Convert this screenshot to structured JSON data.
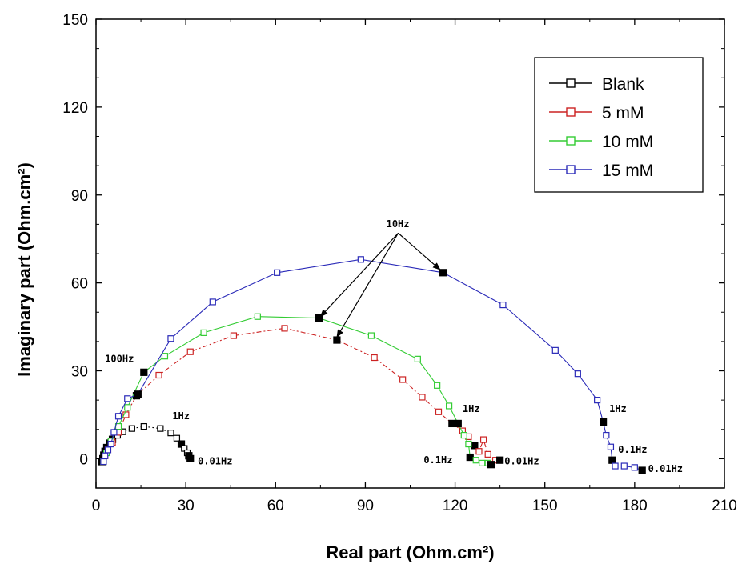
{
  "chart_data": {
    "type": "scatter",
    "xlabel": "Real part (Ohm.cm²)",
    "ylabel": "Imaginary part (Ohm.cm²)",
    "xlim": [
      0,
      210
    ],
    "ylim": [
      -10,
      150
    ],
    "xticks": [
      0,
      30,
      60,
      90,
      120,
      150,
      180,
      210
    ],
    "yticks": [
      0,
      30,
      60,
      90,
      120,
      150
    ],
    "grid": false,
    "legend_position": "top-right",
    "series": [
      {
        "name": "Blank",
        "color": "#000000",
        "line_style": "dotted",
        "points": [
          [
            2.0,
            -1.0
          ],
          [
            2.3,
            0.0
          ],
          [
            2.6,
            1.2
          ],
          [
            3.0,
            2.5
          ],
          [
            3.6,
            3.8
          ],
          [
            4.5,
            5.3
          ],
          [
            5.5,
            6.6
          ],
          [
            7.2,
            8.0
          ],
          [
            9.0,
            9.2
          ],
          [
            12.0,
            10.3
          ],
          [
            16.0,
            11.0
          ],
          [
            21.5,
            10.3
          ],
          [
            25.0,
            8.8
          ],
          [
            27.0,
            7.0
          ],
          [
            28.5,
            5.0
          ],
          [
            29.5,
            3.5
          ],
          [
            30.5,
            2.0
          ],
          [
            31.0,
            1.0
          ],
          [
            31.5,
            0.0
          ]
        ],
        "filled_indices": [
          0,
          1,
          2,
          3,
          4,
          5,
          6,
          14,
          17,
          18
        ]
      },
      {
        "name": "5 mM",
        "color": "#cc2222",
        "line_style": "dash-dot",
        "points": [
          [
            2.5,
            -1.0
          ],
          [
            3.0,
            1.0
          ],
          [
            4.0,
            3.0
          ],
          [
            5.5,
            5.5
          ],
          [
            7.5,
            9.0
          ],
          [
            10.0,
            15.0
          ],
          [
            13.5,
            21.5
          ],
          [
            21.0,
            28.5
          ],
          [
            31.5,
            36.5
          ],
          [
            46.0,
            42.0
          ],
          [
            63.0,
            44.5
          ],
          [
            80.5,
            40.5
          ],
          [
            93.0,
            34.5
          ],
          [
            102.5,
            27.0
          ],
          [
            109.0,
            21.0
          ],
          [
            114.5,
            16.0
          ],
          [
            119.0,
            12.0
          ],
          [
            122.5,
            9.5
          ],
          [
            124.5,
            7.5
          ],
          [
            126.5,
            4.5
          ],
          [
            128.0,
            2.5
          ],
          [
            129.5,
            6.5
          ],
          [
            131.0,
            1.5
          ],
          [
            133.5,
            -0.5
          ],
          [
            135.0,
            -0.5
          ]
        ],
        "filled_indices": [
          6,
          11,
          16,
          19,
          24
        ]
      },
      {
        "name": "10 mM",
        "color": "#33cc33",
        "line_style": "solid",
        "points": [
          [
            2.5,
            -1.0
          ],
          [
            3.5,
            2.0
          ],
          [
            5.0,
            6.0
          ],
          [
            7.5,
            11.0
          ],
          [
            10.5,
            17.5
          ],
          [
            16.0,
            29.5
          ],
          [
            23.0,
            35.0
          ],
          [
            36.0,
            43.0
          ],
          [
            54.0,
            48.5
          ],
          [
            74.5,
            48.0
          ],
          [
            92.0,
            42.0
          ],
          [
            107.5,
            34.0
          ],
          [
            114.0,
            25.0
          ],
          [
            118.0,
            18.0
          ],
          [
            121.0,
            12.0
          ],
          [
            123.0,
            8.0
          ],
          [
            124.5,
            5.0
          ],
          [
            125.0,
            0.5
          ],
          [
            127.0,
            -0.5
          ],
          [
            129.0,
            -1.5
          ],
          [
            131.0,
            -1.5
          ],
          [
            132.0,
            -2.0
          ]
        ],
        "filled_indices": [
          5,
          9,
          14,
          17,
          21
        ]
      },
      {
        "name": "15 mM",
        "color": "#2a2ab8",
        "line_style": "solid",
        "points": [
          [
            2.5,
            -1.0
          ],
          [
            3.0,
            1.0
          ],
          [
            4.0,
            3.0
          ],
          [
            5.0,
            5.0
          ],
          [
            6.0,
            9.0
          ],
          [
            7.5,
            14.5
          ],
          [
            10.5,
            20.5
          ],
          [
            14.0,
            22.0
          ],
          [
            25.0,
            41.0
          ],
          [
            39.0,
            53.5
          ],
          [
            60.5,
            63.5
          ],
          [
            88.5,
            68.0
          ],
          [
            116.0,
            63.5
          ],
          [
            136.0,
            52.5
          ],
          [
            153.5,
            37.0
          ],
          [
            161.0,
            29.0
          ],
          [
            167.5,
            20.0
          ],
          [
            169.5,
            12.5
          ],
          [
            170.5,
            8.0
          ],
          [
            172.0,
            4.0
          ],
          [
            172.5,
            -0.5
          ],
          [
            173.5,
            -2.5
          ],
          [
            176.5,
            -2.5
          ],
          [
            180.0,
            -3.0
          ],
          [
            182.5,
            -4.0
          ]
        ],
        "filled_indices": [
          7,
          12,
          17,
          20,
          24
        ]
      }
    ],
    "annotations": [
      {
        "text": "100Hz",
        "x": 3.0,
        "y": 33.0
      },
      {
        "text": "1Hz",
        "x": 25.5,
        "y": 13.5
      },
      {
        "text": "0.01Hz",
        "x": 34.0,
        "y": -2.0
      },
      {
        "text": "10Hz",
        "x": 97.0,
        "y": 79.0
      },
      {
        "text": "1Hz",
        "x": 122.5,
        "y": 16.0
      },
      {
        "text": "0.1Hz",
        "x": 109.5,
        "y": -1.5
      },
      {
        "text": "0.01Hz",
        "x": 136.5,
        "y": -2.0
      },
      {
        "text": "1Hz",
        "x": 171.5,
        "y": 16.0
      },
      {
        "text": "0.1Hz",
        "x": 174.5,
        "y": 2.0
      },
      {
        "text": "0.01Hz",
        "x": 184.5,
        "y": -4.5
      }
    ],
    "arrows": [
      {
        "from": [
          101.0,
          77.0
        ],
        "to": [
          75.0,
          48.5
        ]
      },
      {
        "from": [
          101.0,
          77.0
        ],
        "to": [
          80.5,
          41.5
        ]
      },
      {
        "from": [
          101.0,
          77.0
        ],
        "to": [
          115.0,
          64.5
        ]
      }
    ]
  }
}
